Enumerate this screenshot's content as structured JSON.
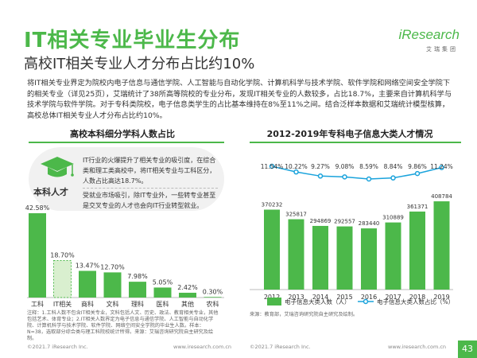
{
  "header": {
    "title": "IT相关专业毕业生分布",
    "subtitle": "高校IT相关专业人才分布占比约10%",
    "logo_text": "iResearch",
    "logo_sub": "艾瑞集团"
  },
  "body_text": "将IT相关专业界定为院校内电子信息与通信学院、人工智能与自动化学院、计算机科学与技术学院、软件学院和网络空间安全学院下的相关专业（详见25页），艾瑞统计了38所高等院校的专业分布，发现IT相关专业的人数较多，占比18.7%，主要来自计算机科学与技术学院与软件学院。对于专科类院校，电子信息类学生的占比基本维持在8%至11%之间。结合泛样本数据和艾瑞统计模型核算，高校总体IT相关专业人才分布占比约10%。",
  "left_chart": {
    "title": "高校本科细分学科人数占比",
    "info_label": "本科人才",
    "info_text_1": "IT行业的火爆提升了相关专业的吸引度，在综合类和理工类高校中，将IT相关专业与工科区分，人数占比高达18.7%。",
    "info_text_2": "受就业市场吸引，除IT专业外，一些转专业甚至是交叉专业的人才也会向IT行业转型就业。"
  },
  "right_chart": {
    "title": "2012-2019年专科电子信息大类人才情况",
    "legend_bar": "电子信息大类人数（人）",
    "legend_line": "电子信息大类人数占比（%）"
  },
  "chart_data": [
    {
      "type": "bar",
      "title": "高校本科细分学科人数占比",
      "categories": [
        "工科",
        "IT相关",
        "商科",
        "文科",
        "理科",
        "医科",
        "其他",
        "农科"
      ],
      "values": [
        42.58,
        18.7,
        13.47,
        12.7,
        7.98,
        5.05,
        2.42,
        0.3
      ],
      "value_labels": [
        "42.58%",
        "18.70%",
        "13.47%",
        "12.70%",
        "7.98%",
        "5.05%",
        "2.42%",
        "0.30%"
      ],
      "highlight": "IT相关",
      "ylim": [
        0,
        45
      ]
    },
    {
      "type": "bar",
      "title": "2012-2019年专科电子信息大类人才情况",
      "categories": [
        "2012",
        "2013",
        "2014",
        "2015",
        "2016",
        "2017",
        "2018",
        "2019"
      ],
      "series": [
        {
          "name": "电子信息大类人数（人）",
          "type": "bar",
          "values": [
            370232,
            325817,
            294869,
            292557,
            283440,
            310889,
            361371,
            408784
          ]
        },
        {
          "name": "电子信息大类人数占比（%）",
          "type": "line",
          "values": [
            11.54,
            10.22,
            9.27,
            9.08,
            8.59,
            8.84,
            9.86,
            11.24
          ],
          "labels": [
            "11.54%",
            "10.22%",
            "9.27%",
            "9.08%",
            "8.59%",
            "8.84%",
            "9.86%",
            "11.24%"
          ]
        }
      ],
      "ylim": [
        0,
        420000
      ],
      "y2lim": [
        0,
        14
      ]
    }
  ],
  "colors": {
    "green": "#4cb84a",
    "light_green": "#d9efcf",
    "line_blue": "#1aa3dc"
  },
  "footnote": "注释：1.工科人数不包含IT相关专业，文科包括人文、历史、政法、教育相关专业，其他包括艺术、体育专业；2.IT相关人数界定为电子信息与通信学院、人工智能与自动化学院、计算机科学与技术学院、软件学院、网络空间安全学院的毕业生人数。样本：N=38，选取部分综合类与理工科院校统计所得。来源：艾瑞咨询研究院自主研究及绘制。",
  "right_source": "来源：教育部，艾瑞咨询研究院自主研究及绘制。",
  "footer": {
    "left_copy": "©2021.7 iResearch Inc.",
    "left_url": "www.iresearch.com.cn",
    "right_copy": "©2021.7 iResearch Inc.",
    "right_url": "www.iresearch.com.cn",
    "page": "43"
  }
}
